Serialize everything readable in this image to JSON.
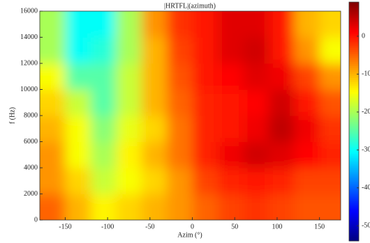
{
  "chart_data": {
    "type": "heatmap",
    "title": "|HRTFL|(azimuth)",
    "x_label": "Azim (°)",
    "y_label": "f (Hz)",
    "x": [
      -165,
      -135,
      -105,
      -75,
      -45,
      -15,
      15,
      45,
      75,
      105,
      135,
      165
    ],
    "y": [
      1000,
      3000,
      5000,
      7000,
      9000,
      11000,
      13000,
      15000
    ],
    "values": [
      [
        -5,
        -10,
        -14,
        -12,
        -10,
        -8,
        -5,
        -3,
        -2,
        -3,
        -4,
        -4
      ],
      [
        -8,
        -12,
        -18,
        -15,
        -12,
        -8,
        -3,
        -1,
        0,
        -1,
        -3,
        -3
      ],
      [
        -8,
        -15,
        -20,
        -14,
        -10,
        -6,
        -1,
        2,
        4,
        3,
        1,
        -1
      ],
      [
        -10,
        -15,
        -22,
        -16,
        -12,
        -6,
        -1,
        0,
        2,
        5,
        2,
        -2
      ],
      [
        -12,
        -18,
        -25,
        -18,
        -10,
        -5,
        -1,
        0,
        1,
        4,
        0,
        -4
      ],
      [
        -15,
        -25,
        -25,
        -18,
        -10,
        -4,
        0,
        1,
        3,
        2,
        -3,
        -8
      ],
      [
        -20,
        -30,
        -28,
        -20,
        -10,
        -3,
        0,
        3,
        4,
        0,
        -8,
        -15
      ],
      [
        -20,
        -30,
        -30,
        -20,
        -8,
        -2,
        0,
        3,
        3,
        0,
        -10,
        -12
      ]
    ],
    "xlim": [
      -180,
      175
    ],
    "ylim": [
      0,
      16000
    ],
    "clim": [
      -54,
      9
    ],
    "xticks": [
      -150,
      -100,
      -50,
      0,
      50,
      100,
      150
    ],
    "yticks": [
      0,
      2000,
      4000,
      6000,
      8000,
      10000,
      12000,
      14000,
      16000
    ],
    "cticks": [
      0,
      -10,
      -20,
      -30,
      -40,
      -50
    ],
    "colormap": "jet"
  }
}
